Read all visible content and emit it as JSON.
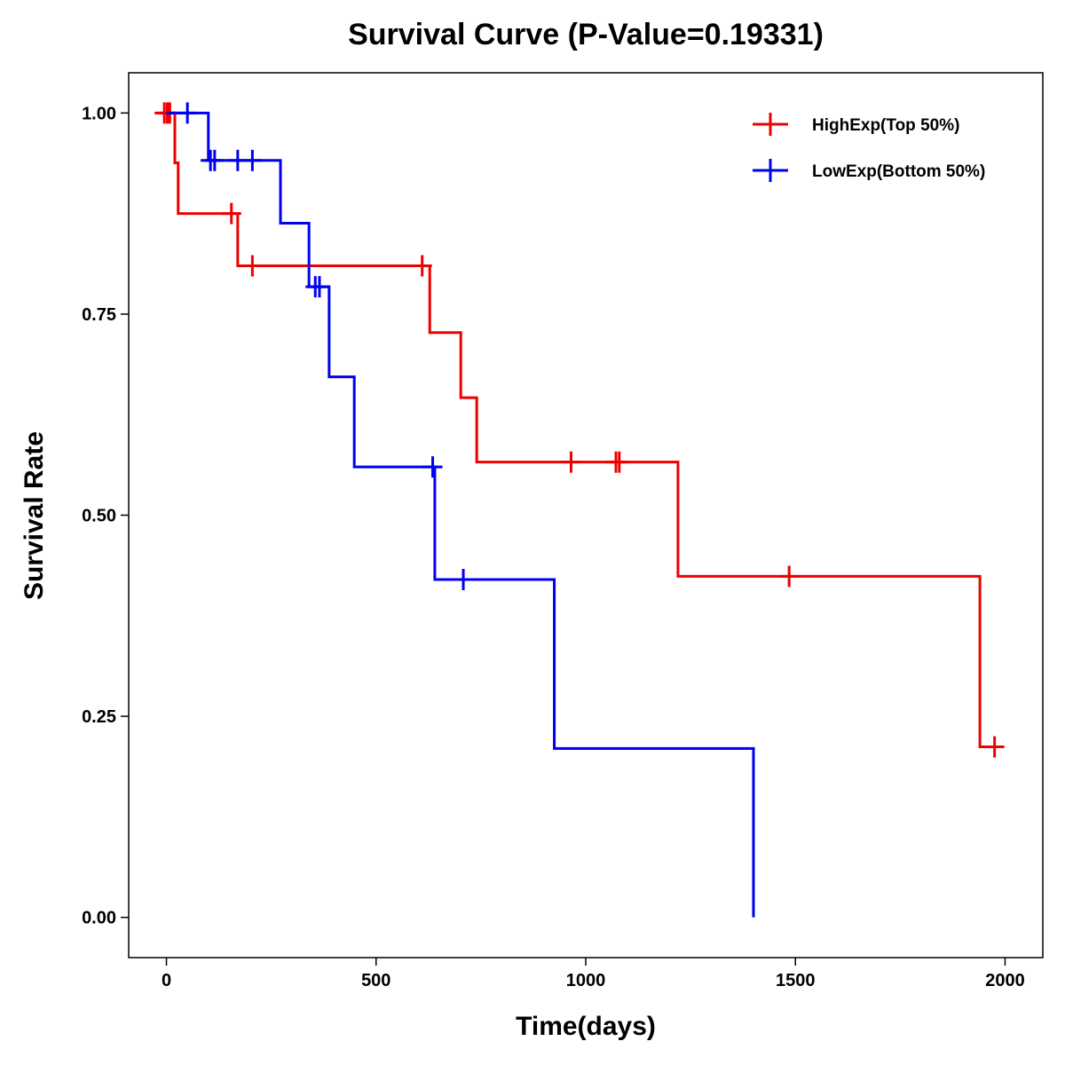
{
  "chart_data": {
    "type": "line",
    "subtype": "kaplan-meier-step",
    "title": "Survival Curve (P-Value=0.19331)",
    "xlabel": "Time(days)",
    "ylabel": "Survival Rate",
    "xlim": [
      -90,
      2090
    ],
    "ylim": [
      -0.05,
      1.05
    ],
    "x_ticks": [
      0,
      500,
      1000,
      1500,
      2000
    ],
    "x_tick_labels": [
      "0",
      "500",
      "1000",
      "1500",
      "2000"
    ],
    "y_ticks": [
      0.0,
      0.25,
      0.5,
      0.75,
      1.0
    ],
    "y_tick_labels": [
      "0.00",
      "0.25",
      "0.50",
      "0.75",
      "1.00"
    ],
    "grid": false,
    "legend_position": "top-right",
    "series": [
      {
        "name": "HighExp(Top 50%)",
        "color": "#ee0000",
        "steps": [
          [
            0,
            1.0
          ],
          [
            20,
            0.938
          ],
          [
            28,
            0.875
          ],
          [
            170,
            0.81
          ],
          [
            628,
            0.727
          ],
          [
            702,
            0.646
          ],
          [
            740,
            0.566
          ],
          [
            1220,
            0.424
          ],
          [
            1940,
            0.212
          ],
          [
            1975,
            0.212
          ]
        ],
        "censor_marks": [
          [
            -5,
            1.0
          ],
          [
            2,
            1.0
          ],
          [
            8,
            1.0
          ],
          [
            155,
            0.875
          ],
          [
            205,
            0.81
          ],
          [
            610,
            0.81
          ],
          [
            965,
            0.566
          ],
          [
            1072,
            0.566
          ],
          [
            1080,
            0.566
          ],
          [
            1485,
            0.424
          ],
          [
            1975,
            0.212
          ]
        ]
      },
      {
        "name": "LowExp(Bottom 50%)",
        "color": "#0000ee",
        "steps": [
          [
            0,
            1.0
          ],
          [
            100,
            0.941
          ],
          [
            272,
            0.863
          ],
          [
            340,
            0.784
          ],
          [
            388,
            0.672
          ],
          [
            448,
            0.56
          ],
          [
            640,
            0.42
          ],
          [
            925,
            0.21
          ],
          [
            1400,
            0.0
          ]
        ],
        "censor_marks": [
          [
            50,
            1.0
          ],
          [
            105,
            0.941
          ],
          [
            115,
            0.941
          ],
          [
            170,
            0.941
          ],
          [
            205,
            0.941
          ],
          [
            355,
            0.784
          ],
          [
            365,
            0.784
          ],
          [
            635,
            0.56
          ],
          [
            708,
            0.42
          ]
        ]
      }
    ]
  }
}
